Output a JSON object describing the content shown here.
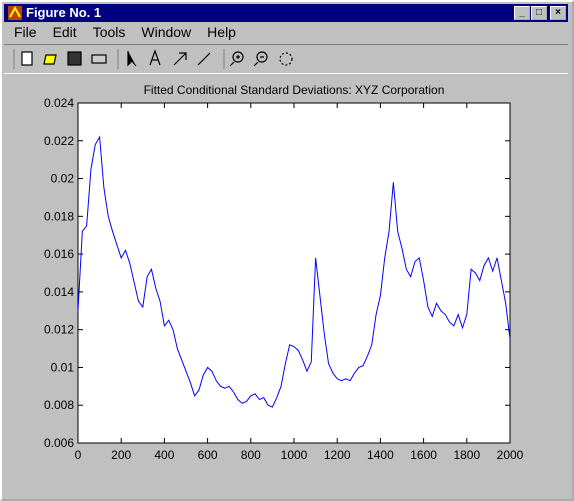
{
  "window": {
    "title": "Figure No. 1",
    "menu": [
      "File",
      "Edit",
      "Tools",
      "Window",
      "Help"
    ]
  },
  "chart_data": {
    "type": "line",
    "title": "Fitted Conditional Standard Deviations: XYZ Corporation",
    "x": [
      0,
      20,
      40,
      60,
      80,
      100,
      120,
      140,
      160,
      180,
      200,
      220,
      240,
      260,
      280,
      300,
      320,
      340,
      360,
      380,
      400,
      420,
      440,
      460,
      480,
      500,
      520,
      540,
      560,
      580,
      600,
      620,
      640,
      660,
      680,
      700,
      720,
      740,
      760,
      780,
      800,
      820,
      840,
      860,
      880,
      900,
      920,
      940,
      960,
      980,
      1000,
      1020,
      1040,
      1060,
      1080,
      1100,
      1120,
      1140,
      1160,
      1180,
      1200,
      1220,
      1240,
      1260,
      1280,
      1300,
      1320,
      1340,
      1360,
      1380,
      1400,
      1420,
      1440,
      1460,
      1480,
      1500,
      1520,
      1540,
      1560,
      1580,
      1600,
      1620,
      1640,
      1660,
      1680,
      1700,
      1720,
      1740,
      1760,
      1780,
      1800,
      1820,
      1840,
      1860,
      1880,
      1900,
      1920,
      1940,
      1960,
      1980,
      2000
    ],
    "series": [
      {
        "color": "#0000ff",
        "values": [
          0.013,
          0.0172,
          0.0175,
          0.0205,
          0.0218,
          0.0222,
          0.0195,
          0.018,
          0.0172,
          0.0165,
          0.0158,
          0.0162,
          0.0155,
          0.0145,
          0.0135,
          0.0132,
          0.0148,
          0.0152,
          0.0142,
          0.0135,
          0.0122,
          0.0125,
          0.012,
          0.011,
          0.0104,
          0.0098,
          0.0092,
          0.0085,
          0.0088,
          0.0096,
          0.01,
          0.0098,
          0.0093,
          0.009,
          0.0089,
          0.009,
          0.0087,
          0.0083,
          0.0081,
          0.0082,
          0.0085,
          0.0086,
          0.0083,
          0.0084,
          0.008,
          0.0079,
          0.0084,
          0.009,
          0.0102,
          0.0112,
          0.0111,
          0.0109,
          0.0104,
          0.0098,
          0.0103,
          0.0158,
          0.0138,
          0.0118,
          0.0102,
          0.0097,
          0.0094,
          0.0093,
          0.0094,
          0.0093,
          0.0097,
          0.01,
          0.0101,
          0.0106,
          0.0112,
          0.0128,
          0.0138,
          0.0158,
          0.0172,
          0.0198,
          0.0172,
          0.0163,
          0.0152,
          0.0148,
          0.0156,
          0.0158,
          0.0146,
          0.0132,
          0.0127,
          0.0134,
          0.013,
          0.0128,
          0.0124,
          0.0122,
          0.0128,
          0.0121,
          0.0128,
          0.0152,
          0.015,
          0.0146,
          0.0154,
          0.0158,
          0.0151,
          0.0158,
          0.0146,
          0.0134,
          0.0115
        ]
      }
    ],
    "xlim": [
      0,
      2000
    ],
    "xticks": [
      0,
      200,
      400,
      600,
      800,
      1000,
      1200,
      1400,
      1600,
      1800,
      2000
    ],
    "ylim": [
      0.006,
      0.024
    ],
    "yticks": [
      0.006,
      0.008,
      0.01,
      0.012,
      0.014,
      0.016,
      0.018,
      0.02,
      0.022,
      0.024
    ]
  }
}
